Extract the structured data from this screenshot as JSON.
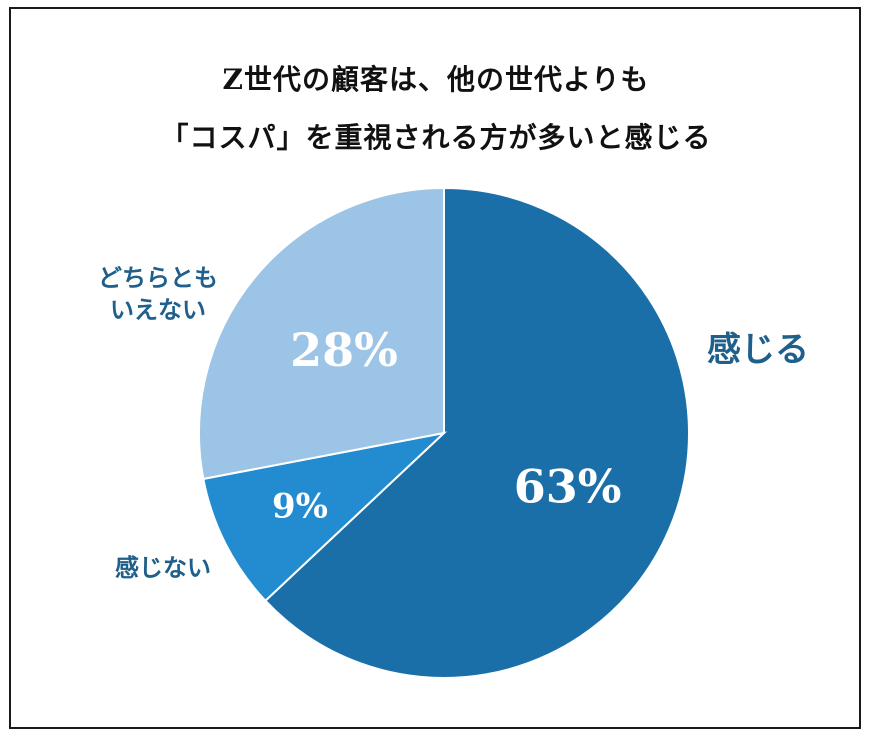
{
  "chart_data": {
    "type": "pie",
    "title_lines": [
      "Z世代の顧客は、他の世代よりも",
      "「コスパ」を重視される方が多いと感じる"
    ],
    "slices": [
      {
        "label": "感じる",
        "value": 63,
        "value_label": "63%",
        "color": "#1b6fa8"
      },
      {
        "label": "感じない",
        "value": 9,
        "value_label": "9%",
        "color": "#238bd0"
      },
      {
        "label_lines": [
          "どちらとも",
          "いえない"
        ],
        "label": "どちらともいえない",
        "value": 28,
        "value_label": "28%",
        "color": "#9cc4e6"
      }
    ],
    "start": "12 o'clock",
    "direction": "clockwise",
    "value_label_color": "#ffffff",
    "category_label_color": "#1f5f8b"
  }
}
